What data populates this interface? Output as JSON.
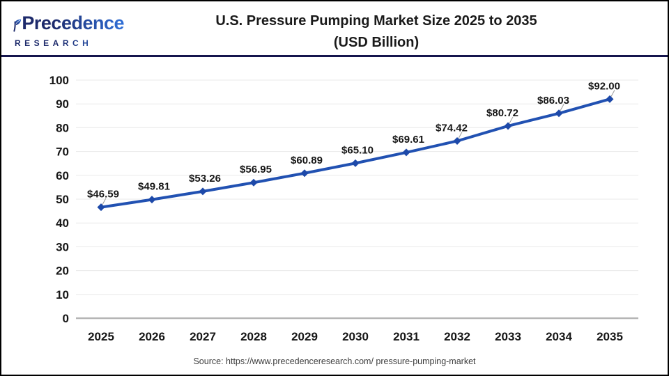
{
  "header": {
    "logo": {
      "brand": "Precedence",
      "subtitle": "RESEARCH"
    },
    "title_line1": "U.S. Pressure Pumping Market Size 2025 to 2035",
    "title_line2": "(USD Billion)"
  },
  "chart_data": {
    "type": "line",
    "title": "U.S. Pressure Pumping Market Size 2025 to 2035 (USD Billion)",
    "categories": [
      "2025",
      "2026",
      "2027",
      "2028",
      "2029",
      "2030",
      "2031",
      "2032",
      "2033",
      "2034",
      "2035"
    ],
    "values": [
      46.59,
      49.81,
      53.26,
      56.95,
      60.89,
      65.1,
      69.61,
      74.42,
      80.72,
      86.03,
      92.0
    ],
    "point_labels": [
      "$46.59",
      "$49.81",
      "$53.26",
      "$56.95",
      "$60.89",
      "$65.10",
      "$69.61",
      "$74.42",
      "$80.72",
      "$86.03",
      "$92.00"
    ],
    "ylim": [
      0,
      100
    ],
    "yticks": [
      0,
      10,
      20,
      30,
      40,
      50,
      60,
      70,
      80,
      90,
      100
    ],
    "grid": true,
    "legend": "none",
    "xlabel": "",
    "ylabel": "",
    "line_color": "#2151b2",
    "marker_color": "#1d49a9",
    "grid_color": "#e9e9e9",
    "axis_color": "#b5b5b5",
    "leader_color": "#9a9a9a",
    "label_color": "#161616"
  },
  "footer": {
    "source": "Source: https://www.precedenceresearch.com/ pressure-pumping-market"
  },
  "colors": {
    "separator": "#15154d",
    "border": "#000000",
    "background": "#ffffff",
    "logo_navy": "#1d2a6b",
    "logo_blue": "#2f6fd8"
  }
}
